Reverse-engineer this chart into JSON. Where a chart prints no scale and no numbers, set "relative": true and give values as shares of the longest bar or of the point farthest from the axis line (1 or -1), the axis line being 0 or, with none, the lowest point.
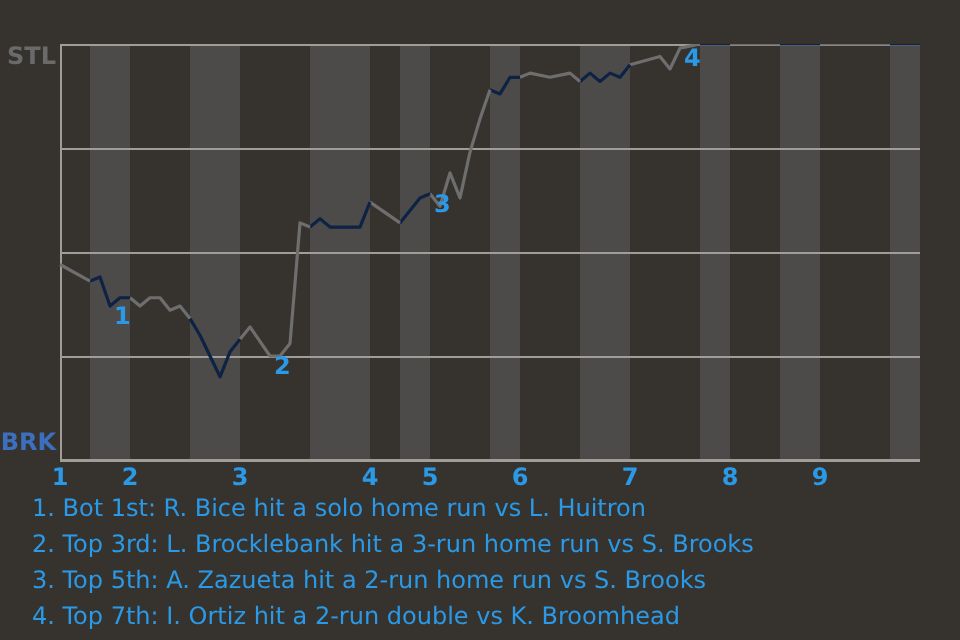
{
  "chart_data": {
    "type": "line",
    "relative": true,
    "grid": "y",
    "legend": false,
    "marker": "none",
    "line_style": "solid",
    "categories": [
      "1",
      null,
      null,
      null,
      null,
      null,
      null,
      "2",
      null,
      null,
      null,
      null,
      null,
      null,
      null,
      null,
      null,
      null,
      "3",
      null,
      null,
      null,
      null,
      null,
      null,
      null,
      null,
      null,
      null,
      null,
      null,
      "4",
      null,
      null,
      null,
      null,
      null,
      "5",
      null,
      null,
      null,
      null,
      null,
      null,
      null,
      null,
      "6",
      null,
      null,
      null,
      null,
      null,
      null,
      null,
      null,
      null,
      null,
      "7",
      null,
      null,
      null,
      null,
      null,
      null,
      null,
      null,
      null,
      "8",
      null,
      null,
      null,
      null,
      null,
      null,
      null,
      null,
      "9",
      null,
      null,
      null,
      null,
      null,
      null,
      null,
      null,
      null,
      null
    ],
    "series": [
      {
        "color": "#6e6e6e",
        "values": [
          0.47,
          null,
          null,
          0.43,
          null,
          null,
          null,
          null,
          null,
          null,
          null,
          null,
          null,
          null,
          null,
          null,
          null,
          null,
          null,
          null,
          null,
          null,
          null,
          null,
          null,
          null,
          null,
          null,
          null,
          null,
          null,
          null,
          null,
          null,
          null,
          null,
          null,
          null,
          null,
          null,
          null,
          null,
          null,
          null,
          null,
          null,
          null,
          null,
          null,
          null,
          null,
          null,
          null,
          null,
          null,
          null,
          null,
          null,
          null,
          null,
          null,
          null,
          null,
          null,
          null,
          null,
          null,
          null,
          null,
          null,
          null,
          null,
          null,
          null,
          null,
          null,
          null,
          null,
          null,
          null,
          null,
          null,
          null,
          null,
          null,
          null,
          null
        ]
      },
      {
        "color": "#0d2244",
        "values": [
          null,
          null,
          null,
          0.43,
          0.44,
          0.37,
          0.39,
          0.39,
          null,
          null,
          null,
          null,
          null,
          null,
          null,
          null,
          null,
          null,
          null,
          null,
          null,
          null,
          null,
          null,
          null,
          null,
          null,
          null,
          null,
          null,
          null,
          null,
          null,
          null,
          null,
          null,
          null,
          null,
          null,
          null,
          null,
          null,
          null,
          null,
          null,
          null,
          null,
          null,
          null,
          null,
          null,
          null,
          null,
          null,
          null,
          null,
          null,
          null,
          null,
          null,
          null,
          null,
          null,
          null,
          null,
          null,
          null,
          null,
          null,
          null,
          null,
          null,
          null,
          null,
          null,
          null,
          null,
          null,
          null,
          null,
          null,
          null,
          null,
          null,
          null,
          null,
          null
        ]
      },
      {
        "color": "#6e6e6e",
        "values": [
          null,
          null,
          null,
          null,
          null,
          null,
          null,
          0.39,
          0.37,
          0.39,
          0.39,
          0.36,
          0.37,
          0.34,
          null,
          null,
          null,
          null,
          null,
          null,
          null,
          null,
          null,
          null,
          null,
          null,
          null,
          null,
          null,
          null,
          null,
          null,
          null,
          null,
          null,
          null,
          null,
          null,
          null,
          null,
          null,
          null,
          null,
          null,
          null,
          null,
          null,
          null,
          null,
          null,
          null,
          null,
          null,
          null,
          null,
          null,
          null,
          null,
          null,
          null,
          null,
          null,
          null,
          null,
          null,
          null,
          null,
          null,
          null,
          null,
          null,
          null,
          null,
          null,
          null,
          null,
          null,
          null,
          null,
          null,
          null,
          null,
          null,
          null,
          null,
          null,
          null
        ]
      },
      {
        "color": "#0d2244",
        "values": [
          null,
          null,
          null,
          null,
          null,
          null,
          null,
          null,
          null,
          null,
          null,
          null,
          null,
          0.34,
          0.3,
          null,
          0.2,
          0.26,
          0.29,
          null,
          null,
          null,
          null,
          null,
          null,
          null,
          null,
          null,
          null,
          null,
          null,
          null,
          null,
          null,
          null,
          null,
          null,
          null,
          null,
          null,
          null,
          null,
          null,
          null,
          null,
          null,
          null,
          null,
          null,
          null,
          null,
          null,
          null,
          null,
          null,
          null,
          null,
          null,
          null,
          null,
          null,
          null,
          null,
          null,
          null,
          null,
          null,
          null,
          null,
          null,
          null,
          null,
          null,
          null,
          null,
          null,
          null,
          null,
          null,
          null,
          null,
          null,
          null,
          null,
          null,
          null,
          null
        ]
      },
      {
        "color": "#6e6e6e",
        "values": [
          null,
          null,
          null,
          null,
          null,
          null,
          null,
          null,
          null,
          null,
          null,
          null,
          null,
          null,
          null,
          null,
          null,
          null,
          0.29,
          0.32,
          null,
          0.25,
          0.25,
          0.28,
          0.57,
          0.56,
          null,
          null,
          null,
          null,
          null,
          null,
          null,
          null,
          null,
          null,
          null,
          null,
          null,
          null,
          null,
          null,
          null,
          null,
          null,
          null,
          null,
          null,
          null,
          null,
          null,
          null,
          null,
          null,
          null,
          null,
          null,
          null,
          null,
          null,
          null,
          null,
          null,
          null,
          null,
          null,
          null,
          null,
          null,
          null,
          null,
          null,
          null,
          null,
          null,
          null,
          null,
          null,
          null,
          null,
          null,
          null,
          null,
          null,
          null,
          null,
          null
        ]
      },
      {
        "color": "#0d2244",
        "values": [
          null,
          null,
          null,
          null,
          null,
          null,
          null,
          null,
          null,
          null,
          null,
          null,
          null,
          null,
          null,
          null,
          null,
          null,
          null,
          null,
          null,
          null,
          null,
          null,
          null,
          0.56,
          0.58,
          0.56,
          null,
          null,
          0.56,
          0.62,
          null,
          null,
          null,
          null,
          null,
          null,
          null,
          null,
          null,
          null,
          null,
          null,
          null,
          null,
          null,
          null,
          null,
          null,
          null,
          null,
          null,
          null,
          null,
          null,
          null,
          null,
          null,
          null,
          null,
          null,
          null,
          null,
          null,
          null,
          null,
          null,
          null,
          null,
          null,
          null,
          null,
          null,
          null,
          null,
          null,
          null,
          null,
          null,
          null,
          null,
          null,
          null,
          null,
          null,
          null
        ]
      },
      {
        "color": "#6e6e6e",
        "values": [
          null,
          null,
          null,
          null,
          null,
          null,
          null,
          null,
          null,
          null,
          null,
          null,
          null,
          null,
          null,
          null,
          null,
          null,
          null,
          null,
          null,
          null,
          null,
          null,
          null,
          null,
          null,
          null,
          null,
          null,
          null,
          0.62,
          null,
          null,
          0.57,
          null,
          null,
          null,
          null,
          null,
          null,
          null,
          null,
          null,
          null,
          null,
          null,
          null,
          null,
          null,
          null,
          null,
          null,
          null,
          null,
          null,
          null,
          null,
          null,
          null,
          null,
          null,
          null,
          null,
          null,
          null,
          null,
          null,
          null,
          null,
          null,
          null,
          null,
          null,
          null,
          null,
          null,
          null,
          null,
          null,
          null,
          null,
          null,
          null,
          null,
          null,
          null
        ]
      },
      {
        "color": "#0d2244",
        "values": [
          null,
          null,
          null,
          null,
          null,
          null,
          null,
          null,
          null,
          null,
          null,
          null,
          null,
          null,
          null,
          null,
          null,
          null,
          null,
          null,
          null,
          null,
          null,
          null,
          null,
          null,
          null,
          null,
          null,
          null,
          null,
          null,
          null,
          null,
          0.57,
          null,
          0.63,
          0.64,
          null,
          null,
          null,
          null,
          null,
          null,
          null,
          null,
          null,
          null,
          null,
          null,
          null,
          null,
          null,
          null,
          null,
          null,
          null,
          null,
          null,
          null,
          null,
          null,
          null,
          null,
          null,
          null,
          null,
          null,
          null,
          null,
          null,
          null,
          null,
          null,
          null,
          null,
          null,
          null,
          null,
          null,
          null,
          null,
          null,
          null,
          null,
          null,
          null
        ]
      },
      {
        "color": "#6e6e6e",
        "values": [
          null,
          null,
          null,
          null,
          null,
          null,
          null,
          null,
          null,
          null,
          null,
          null,
          null,
          null,
          null,
          null,
          null,
          null,
          null,
          null,
          null,
          null,
          null,
          null,
          null,
          null,
          null,
          null,
          null,
          null,
          null,
          null,
          null,
          null,
          null,
          null,
          null,
          0.64,
          0.61,
          0.69,
          0.63,
          0.74,
          0.82,
          0.89,
          null,
          null,
          null,
          null,
          null,
          null,
          null,
          null,
          null,
          null,
          null,
          null,
          null,
          null,
          null,
          null,
          null,
          null,
          null,
          null,
          null,
          null,
          null,
          null,
          null,
          null,
          null,
          null,
          null,
          null,
          null,
          null,
          null,
          null,
          null,
          null,
          null,
          null,
          null,
          null,
          null,
          null,
          null
        ]
      },
      {
        "color": "#0d2244",
        "values": [
          null,
          null,
          null,
          null,
          null,
          null,
          null,
          null,
          null,
          null,
          null,
          null,
          null,
          null,
          null,
          null,
          null,
          null,
          null,
          null,
          null,
          null,
          null,
          null,
          null,
          null,
          null,
          null,
          null,
          null,
          null,
          null,
          null,
          null,
          null,
          null,
          null,
          null,
          null,
          null,
          null,
          null,
          null,
          0.89,
          0.88,
          0.92,
          0.92,
          null,
          null,
          null,
          null,
          null,
          null,
          null,
          null,
          null,
          null,
          null,
          null,
          null,
          null,
          null,
          null,
          null,
          null,
          null,
          null,
          null,
          null,
          null,
          null,
          null,
          null,
          null,
          null,
          null,
          null,
          null,
          null,
          null,
          null,
          null,
          null,
          null,
          null,
          null,
          null
        ]
      },
      {
        "color": "#6e6e6e",
        "values": [
          null,
          null,
          null,
          null,
          null,
          null,
          null,
          null,
          null,
          null,
          null,
          null,
          null,
          null,
          null,
          null,
          null,
          null,
          null,
          null,
          null,
          null,
          null,
          null,
          null,
          null,
          null,
          null,
          null,
          null,
          null,
          null,
          null,
          null,
          null,
          null,
          null,
          null,
          null,
          null,
          null,
          null,
          null,
          null,
          null,
          null,
          0.92,
          0.93,
          null,
          0.92,
          null,
          0.93,
          0.91,
          null,
          null,
          null,
          null,
          null,
          null,
          null,
          null,
          null,
          null,
          null,
          null,
          null,
          null,
          null,
          null,
          null,
          null,
          null,
          null,
          null,
          null,
          null,
          null,
          null,
          null,
          null,
          null,
          null,
          null,
          null,
          null,
          null,
          null
        ]
      },
      {
        "color": "#0d2244",
        "values": [
          null,
          null,
          null,
          null,
          null,
          null,
          null,
          null,
          null,
          null,
          null,
          null,
          null,
          null,
          null,
          null,
          null,
          null,
          null,
          null,
          null,
          null,
          null,
          null,
          null,
          null,
          null,
          null,
          null,
          null,
          null,
          null,
          null,
          null,
          null,
          null,
          null,
          null,
          null,
          null,
          null,
          null,
          null,
          null,
          null,
          null,
          null,
          null,
          null,
          null,
          null,
          null,
          0.91,
          0.93,
          0.91,
          0.93,
          0.92,
          0.95,
          null,
          null,
          null,
          null,
          null,
          null,
          null,
          null,
          null,
          null,
          null,
          null,
          null,
          null,
          null,
          null,
          null,
          null,
          null,
          null,
          null,
          null,
          null,
          null,
          null,
          null,
          null,
          null,
          null
        ]
      },
      {
        "color": "#6e6e6e",
        "values": [
          null,
          null,
          null,
          null,
          null,
          null,
          null,
          null,
          null,
          null,
          null,
          null,
          null,
          null,
          null,
          null,
          null,
          null,
          null,
          null,
          null,
          null,
          null,
          null,
          null,
          null,
          null,
          null,
          null,
          null,
          null,
          null,
          null,
          null,
          null,
          null,
          null,
          null,
          null,
          null,
          null,
          null,
          null,
          null,
          null,
          null,
          null,
          null,
          null,
          null,
          null,
          null,
          null,
          null,
          null,
          null,
          null,
          0.95,
          null,
          null,
          0.97,
          0.94,
          0.99,
          null,
          1,
          null,
          null,
          null,
          null,
          null,
          null,
          null,
          null,
          null,
          null,
          null,
          null,
          null,
          null,
          null,
          null,
          null,
          null,
          null,
          null,
          null,
          null
        ]
      },
      {
        "color": "#0d2244",
        "values": [
          null,
          null,
          null,
          null,
          null,
          null,
          null,
          null,
          null,
          null,
          null,
          null,
          null,
          null,
          null,
          null,
          null,
          null,
          null,
          null,
          null,
          null,
          null,
          null,
          null,
          null,
          null,
          null,
          null,
          null,
          null,
          null,
          null,
          null,
          null,
          null,
          null,
          null,
          null,
          null,
          null,
          null,
          null,
          null,
          null,
          null,
          null,
          null,
          null,
          null,
          null,
          null,
          null,
          null,
          null,
          null,
          null,
          null,
          null,
          null,
          null,
          null,
          null,
          null,
          1,
          null,
          null,
          1,
          null,
          null,
          null,
          null,
          null,
          null,
          null,
          null,
          null,
          null,
          null,
          null,
          null,
          null,
          null,
          null,
          null,
          null,
          null
        ]
      },
      {
        "color": "#6e6e6e",
        "values": [
          null,
          null,
          null,
          null,
          null,
          null,
          null,
          null,
          null,
          null,
          null,
          null,
          null,
          null,
          null,
          null,
          null,
          null,
          null,
          null,
          null,
          null,
          null,
          null,
          null,
          null,
          null,
          null,
          null,
          null,
          null,
          null,
          null,
          null,
          null,
          null,
          null,
          null,
          null,
          null,
          null,
          null,
          null,
          null,
          null,
          null,
          null,
          null,
          null,
          null,
          null,
          null,
          null,
          null,
          null,
          null,
          null,
          null,
          null,
          null,
          null,
          null,
          null,
          null,
          null,
          null,
          null,
          1,
          null,
          null,
          null,
          null,
          1,
          null,
          null,
          null,
          null,
          null,
          null,
          null,
          null,
          null,
          null,
          null,
          null,
          null,
          null
        ]
      },
      {
        "color": "#0d2244",
        "values": [
          null,
          null,
          null,
          null,
          null,
          null,
          null,
          null,
          null,
          null,
          null,
          null,
          null,
          null,
          null,
          null,
          null,
          null,
          null,
          null,
          null,
          null,
          null,
          null,
          null,
          null,
          null,
          null,
          null,
          null,
          null,
          null,
          null,
          null,
          null,
          null,
          null,
          null,
          null,
          null,
          null,
          null,
          null,
          null,
          null,
          null,
          null,
          null,
          null,
          null,
          null,
          null,
          null,
          null,
          null,
          null,
          null,
          null,
          null,
          null,
          null,
          null,
          null,
          null,
          null,
          null,
          null,
          null,
          null,
          null,
          null,
          null,
          1,
          null,
          null,
          null,
          1,
          null,
          null,
          null,
          null,
          null,
          null,
          null,
          null,
          null,
          null
        ]
      },
      {
        "color": "#6e6e6e",
        "values": [
          null,
          null,
          null,
          null,
          null,
          null,
          null,
          null,
          null,
          null,
          null,
          null,
          null,
          null,
          null,
          null,
          null,
          null,
          null,
          null,
          null,
          null,
          null,
          null,
          null,
          null,
          null,
          null,
          null,
          null,
          null,
          null,
          null,
          null,
          null,
          null,
          null,
          null,
          null,
          null,
          null,
          null,
          null,
          null,
          null,
          null,
          null,
          null,
          null,
          null,
          null,
          null,
          null,
          null,
          null,
          null,
          null,
          null,
          null,
          null,
          null,
          null,
          null,
          null,
          null,
          null,
          null,
          null,
          null,
          null,
          null,
          null,
          null,
          null,
          null,
          null,
          1,
          null,
          null,
          null,
          null,
          null,
          null,
          1,
          null,
          null,
          null
        ]
      },
      {
        "color": "#0d2244",
        "values": [
          null,
          null,
          null,
          null,
          null,
          null,
          null,
          null,
          null,
          null,
          null,
          null,
          null,
          null,
          null,
          null,
          null,
          null,
          null,
          null,
          null,
          null,
          null,
          null,
          null,
          null,
          null,
          null,
          null,
          null,
          null,
          null,
          null,
          null,
          null,
          null,
          null,
          null,
          null,
          null,
          null,
          null,
          null,
          null,
          null,
          null,
          null,
          null,
          null,
          null,
          null,
          null,
          null,
          null,
          null,
          null,
          null,
          null,
          null,
          null,
          null,
          null,
          null,
          null,
          null,
          null,
          null,
          null,
          null,
          null,
          null,
          null,
          null,
          null,
          null,
          null,
          null,
          null,
          null,
          null,
          null,
          null,
          null,
          1,
          null,
          null,
          1
        ]
      }
    ],
    "annotations": [
      "STL",
      "BRK",
      {
        "text": "1",
        "y": 0.37
      },
      {
        "text": "2",
        "y": 0.25
      },
      {
        "text": "3",
        "y": 0.64
      },
      {
        "text": "4",
        "y": 0.99
      },
      "1. Bot 1st: R. Bice hit a solo home run vs L. Huitron",
      "2. Top 3rd: L. Brocklebank hit a 3-run home run vs S. Brooks",
      "3. Top 5th: A. Zazueta hit a 2-run home run vs S. Brooks",
      "4. Top 7th: I. Ortiz hit a 2-run double vs K. Broomhead"
    ]
  }
}
